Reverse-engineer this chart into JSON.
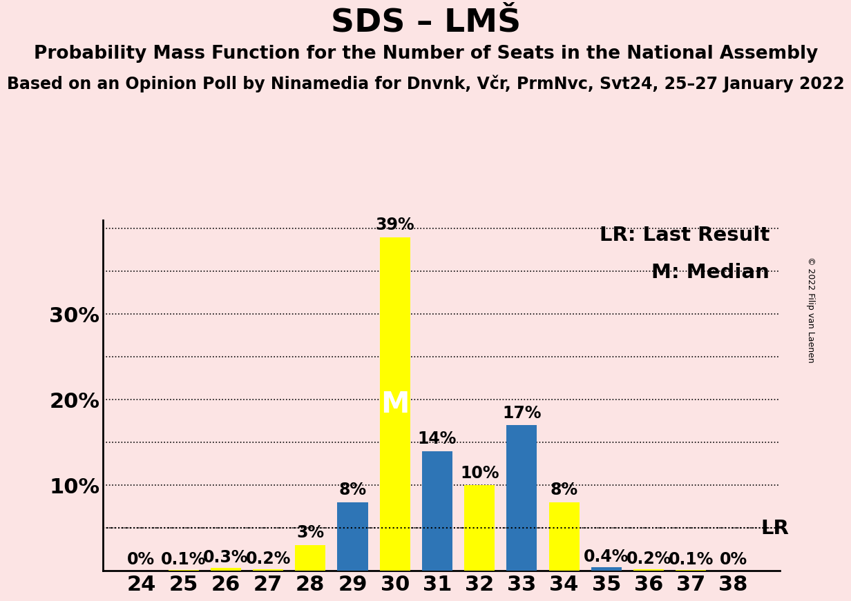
{
  "title": "SDS – LMŠ",
  "subtitle": "Probability Mass Function for the Number of Seats in the National Assembly",
  "source_line": "Based on an Opinion Poll by Ninamedia for Dnvnk, Včr, PrmNvc, Svt24, 25–27 January 2022",
  "copyright": "© 2022 Filip van Laenen",
  "seats": [
    24,
    25,
    26,
    27,
    28,
    29,
    30,
    31,
    32,
    33,
    34,
    35,
    36,
    37,
    38
  ],
  "values": [
    0.0,
    0.1,
    0.3,
    0.2,
    3.0,
    8.0,
    39.0,
    14.0,
    10.0,
    17.0,
    8.0,
    0.4,
    0.2,
    0.1,
    0.0
  ],
  "bar_colors": [
    "#ffff00",
    "#ffff00",
    "#ffff00",
    "#ffff00",
    "#ffff00",
    "#2e75b6",
    "#ffff00",
    "#2e75b6",
    "#ffff00",
    "#2e75b6",
    "#ffff00",
    "#2e75b6",
    "#ffff00",
    "#ffff00",
    "#ffff00"
  ],
  "bar_labels": [
    "0%",
    "0.1%",
    "0.3%",
    "0.2%",
    "3%",
    "8%",
    "39%",
    "14%",
    "10%",
    "17%",
    "8%",
    "0.4%",
    "0.2%",
    "0.1%",
    "0%"
  ],
  "median_seat": 30,
  "median_label": "M",
  "lr_value": 5.0,
  "lr_label": "LR",
  "lr_legend": "LR: Last Result",
  "median_legend": "M: Median",
  "ylim": [
    0,
    41
  ],
  "background_color": "#fce4e4",
  "bar_width": 0.72,
  "title_fontsize": 34,
  "subtitle_fontsize": 19,
  "source_fontsize": 17,
  "axis_fontsize": 22,
  "bar_label_fontsize": 17,
  "legend_fontsize": 21,
  "median_fontsize": 30,
  "lr_line_value": 5.0
}
